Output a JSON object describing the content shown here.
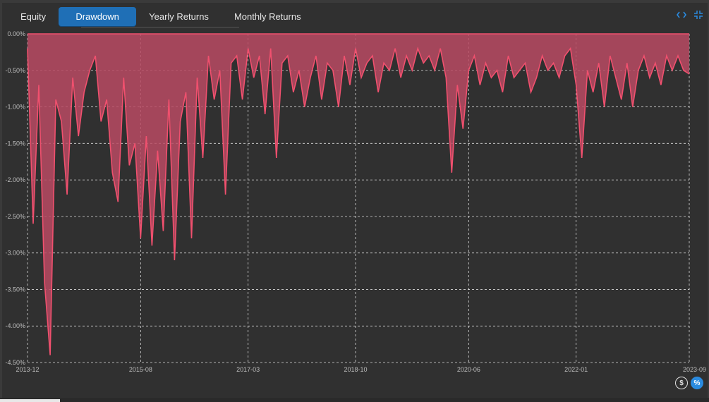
{
  "tabs": [
    {
      "label": "Equity",
      "active": false
    },
    {
      "label": "Drawdown",
      "active": true
    },
    {
      "label": "Yearly Returns",
      "active": false
    },
    {
      "label": "Monthly Returns",
      "active": false
    }
  ],
  "icons": {
    "top": [
      "code-icon",
      "collapse-icon"
    ],
    "bottom": [
      {
        "name": "dollar-toggle",
        "glyph": "$",
        "active": false
      },
      {
        "name": "percent-toggle",
        "glyph": "%",
        "active": true
      }
    ]
  },
  "colors": {
    "accent": "#1f6fb6",
    "series": "#f0506e",
    "fill": "#b84a63",
    "background": "#303030",
    "grid": "#d9d9d9"
  },
  "chart_data": {
    "type": "area",
    "title": "",
    "xlabel": "",
    "ylabel": "",
    "x_ticks": [
      "2013-12",
      "2015-08",
      "2017-03",
      "2018-10",
      "2020-06",
      "2022-01",
      "2023-09"
    ],
    "y_ticks": [
      "0.00%",
      "-0.50%",
      "-1.00%",
      "-1.50%",
      "-2.00%",
      "-2.50%",
      "-3.00%",
      "-3.50%",
      "-4.00%",
      "-4.50%"
    ],
    "ylim": [
      -4.5,
      0
    ],
    "xlim": [
      "2013-12",
      "2023-09"
    ],
    "grid": true,
    "grid_style": "dashed",
    "series": [
      {
        "x": [
          "2013-12",
          "2014-01",
          "2014-02",
          "2014-03",
          "2014-04",
          "2014-05",
          "2014-06",
          "2014-07",
          "2014-08",
          "2014-09",
          "2014-10",
          "2014-11",
          "2014-12",
          "2015-01",
          "2015-02",
          "2015-03",
          "2015-04",
          "2015-05",
          "2015-06",
          "2015-07",
          "2015-08",
          "2015-09",
          "2015-10",
          "2015-11",
          "2015-12",
          "2016-01",
          "2016-02",
          "2016-03",
          "2016-04",
          "2016-05",
          "2016-06",
          "2016-07",
          "2016-08",
          "2016-09",
          "2016-10",
          "2016-11",
          "2016-12",
          "2017-01",
          "2017-02",
          "2017-03",
          "2017-04",
          "2017-05",
          "2017-06",
          "2017-07",
          "2017-08",
          "2017-09",
          "2017-10",
          "2017-11",
          "2017-12",
          "2018-01",
          "2018-02",
          "2018-03",
          "2018-04",
          "2018-05",
          "2018-06",
          "2018-07",
          "2018-08",
          "2018-09",
          "2018-10",
          "2018-11",
          "2018-12",
          "2019-01",
          "2019-02",
          "2019-03",
          "2019-04",
          "2019-05",
          "2019-06",
          "2019-07",
          "2019-08",
          "2019-09",
          "2019-10",
          "2019-11",
          "2019-12",
          "2020-01",
          "2020-02",
          "2020-03",
          "2020-04",
          "2020-05",
          "2020-06",
          "2020-07",
          "2020-08",
          "2020-09",
          "2020-10",
          "2020-11",
          "2020-12",
          "2021-01",
          "2021-02",
          "2021-03",
          "2021-04",
          "2021-05",
          "2021-06",
          "2021-07",
          "2021-08",
          "2021-09",
          "2021-10",
          "2021-11",
          "2021-12",
          "2022-01",
          "2022-02",
          "2022-03",
          "2022-04",
          "2022-05",
          "2022-06",
          "2022-07",
          "2022-08",
          "2022-09",
          "2022-10",
          "2022-11",
          "2022-12",
          "2023-01",
          "2023-02",
          "2023-03",
          "2023-04",
          "2023-05",
          "2023-06",
          "2023-07",
          "2023-08",
          "2023-09"
        ],
        "values": [
          -0.2,
          -2.6,
          -0.7,
          -3.4,
          -4.4,
          -0.9,
          -1.2,
          -2.2,
          -0.6,
          -1.4,
          -0.8,
          -0.5,
          -0.3,
          -1.2,
          -0.9,
          -1.9,
          -2.3,
          -0.6,
          -1.8,
          -1.5,
          -2.8,
          -1.4,
          -2.9,
          -1.6,
          -2.7,
          -0.9,
          -3.1,
          -1.2,
          -0.8,
          -2.8,
          -0.6,
          -1.7,
          -0.3,
          -0.9,
          -0.5,
          -2.2,
          -0.4,
          -0.3,
          -0.9,
          -0.2,
          -0.6,
          -0.3,
          -1.1,
          -0.2,
          -1.7,
          -0.4,
          -0.3,
          -0.8,
          -0.5,
          -1.0,
          -0.6,
          -0.3,
          -0.9,
          -0.4,
          -0.5,
          -1.0,
          -0.3,
          -0.7,
          -0.2,
          -0.6,
          -0.4,
          -0.3,
          -0.8,
          -0.4,
          -0.5,
          -0.2,
          -0.6,
          -0.3,
          -0.5,
          -0.2,
          -0.4,
          -0.3,
          -0.5,
          -0.2,
          -0.6,
          -1.9,
          -0.7,
          -1.3,
          -0.5,
          -0.3,
          -0.7,
          -0.4,
          -0.6,
          -0.5,
          -0.8,
          -0.3,
          -0.6,
          -0.5,
          -0.4,
          -0.8,
          -0.6,
          -0.3,
          -0.5,
          -0.4,
          -0.6,
          -0.3,
          -0.2,
          -0.7,
          -1.7,
          -0.5,
          -0.8,
          -0.4,
          -1.0,
          -0.3,
          -0.6,
          -0.9,
          -0.4,
          -1.0,
          -0.5,
          -0.3,
          -0.6,
          -0.4,
          -0.7,
          -0.3,
          -0.5,
          -0.3,
          -0.5,
          -0.55
        ]
      }
    ]
  }
}
